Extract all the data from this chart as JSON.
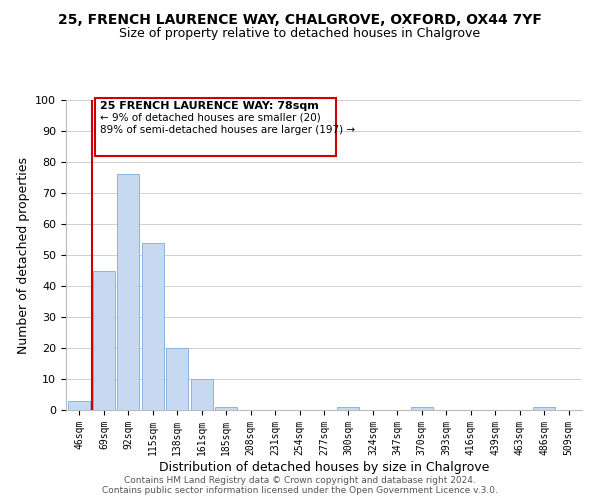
{
  "title": "25, FRENCH LAURENCE WAY, CHALGROVE, OXFORD, OX44 7YF",
  "subtitle": "Size of property relative to detached houses in Chalgrove",
  "xlabel": "Distribution of detached houses by size in Chalgrove",
  "ylabel": "Number of detached properties",
  "bar_labels": [
    "46sqm",
    "69sqm",
    "92sqm",
    "115sqm",
    "138sqm",
    "161sqm",
    "185sqm",
    "208sqm",
    "231sqm",
    "254sqm",
    "277sqm",
    "300sqm",
    "324sqm",
    "347sqm",
    "370sqm",
    "393sqm",
    "416sqm",
    "439sqm",
    "463sqm",
    "486sqm",
    "509sqm"
  ],
  "bar_values": [
    3,
    45,
    76,
    54,
    20,
    10,
    1,
    0,
    0,
    0,
    0,
    1,
    0,
    0,
    1,
    0,
    0,
    0,
    0,
    1,
    0
  ],
  "bar_color": "#c6d9f1",
  "bar_edge_color": "#8db3e2",
  "grid_color": "#d0d0d0",
  "annotation_box_color": "#ffffff",
  "annotation_box_edge": "#cc0000",
  "property_line_color": "#cc0000",
  "annotation_title": "25 FRENCH LAURENCE WAY: 78sqm",
  "annotation_line1": "← 9% of detached houses are smaller (20)",
  "annotation_line2": "89% of semi-detached houses are larger (197) →",
  "ylim": [
    0,
    100
  ],
  "yticks": [
    0,
    10,
    20,
    30,
    40,
    50,
    60,
    70,
    80,
    90,
    100
  ],
  "footer1": "Contains HM Land Registry data © Crown copyright and database right 2024.",
  "footer2": "Contains public sector information licensed under the Open Government Licence v.3.0."
}
